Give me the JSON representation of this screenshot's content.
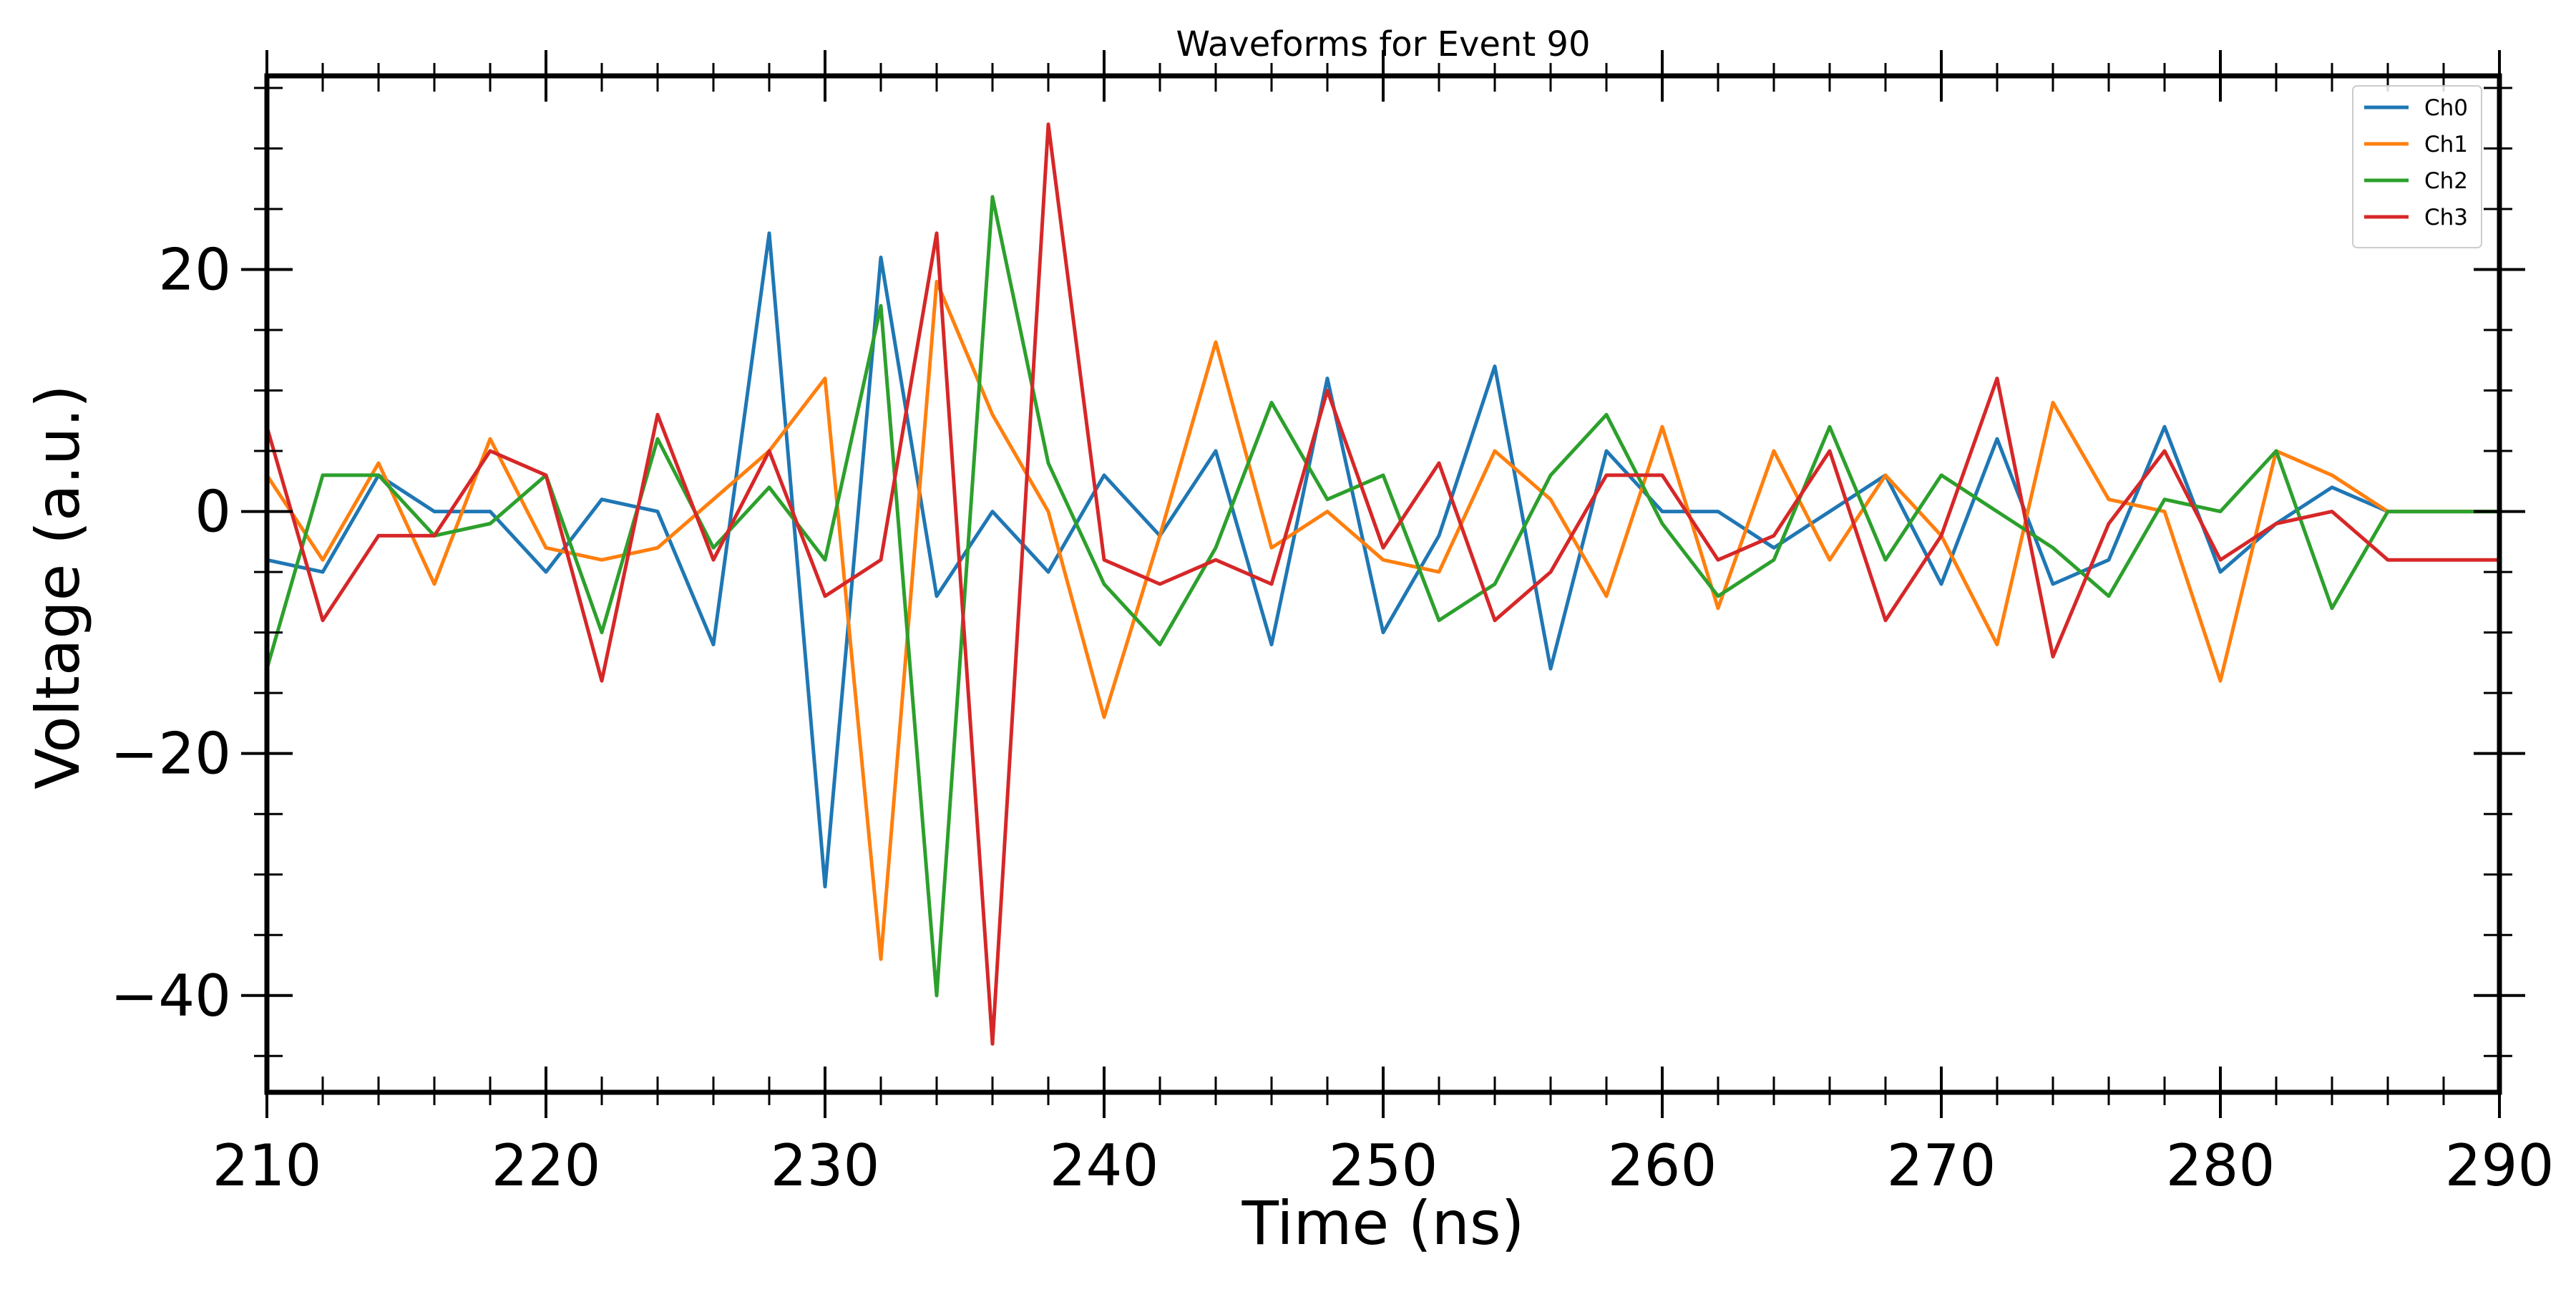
{
  "chart_data": {
    "type": "line",
    "title": "Waveforms for Event 90",
    "xlabel": "Time (ns)",
    "ylabel": "Voltage (a.u.)",
    "xlim": [
      210,
      290
    ],
    "ylim": [
      -48,
      36
    ],
    "x_ticks": [
      210,
      220,
      230,
      240,
      250,
      260,
      270,
      280,
      290
    ],
    "x_tick_labels": [
      "210",
      "220",
      "230",
      "240",
      "250",
      "260",
      "270",
      "280",
      "290"
    ],
    "y_ticks": [
      20,
      0,
      -20,
      -40
    ],
    "y_tick_labels": [
      "20",
      "0",
      "−20",
      "−40"
    ],
    "grid": false,
    "legend_position": "top-right",
    "x": [
      210,
      212,
      214,
      216,
      218,
      220,
      222,
      224,
      226,
      228,
      230,
      232,
      234,
      236,
      238,
      240,
      242,
      244,
      246,
      248,
      250,
      252,
      254,
      256,
      258,
      260,
      262,
      264,
      266,
      268,
      270,
      272,
      274,
      276,
      278,
      280,
      282,
      284,
      286,
      288,
      290
    ],
    "series": [
      {
        "name": "Ch0",
        "color": "#1f77b4",
        "values": [
          -4,
          -5,
          3,
          0,
          0,
          -5,
          1,
          0,
          -11,
          23,
          -31,
          21,
          -7,
          0,
          -5,
          3,
          -2,
          5,
          -11,
          11,
          -10,
          -2,
          12,
          -13,
          5,
          0,
          0,
          -3,
          0,
          3,
          -6,
          6,
          -6,
          -4,
          7,
          -5,
          -1,
          2,
          0,
          0,
          0
        ]
      },
      {
        "name": "Ch1",
        "color": "#ff7f0e",
        "values": [
          3,
          -4,
          4,
          -6,
          6,
          -3,
          -4,
          -3,
          1,
          5,
          11,
          -37,
          19,
          8,
          0,
          -17,
          -2,
          14,
          -3,
          0,
          -4,
          -5,
          5,
          1,
          -7,
          7,
          -8,
          5,
          -4,
          3,
          -2,
          -11,
          9,
          1,
          0,
          -14,
          5,
          3,
          0,
          0,
          0
        ]
      },
      {
        "name": "Ch2",
        "color": "#2ca02c",
        "values": [
          -13,
          3,
          3,
          -2,
          -1,
          3,
          -10,
          6,
          -3,
          2,
          -4,
          17,
          -40,
          26,
          4,
          -6,
          -11,
          -3,
          9,
          1,
          3,
          -9,
          -6,
          3,
          8,
          -1,
          -7,
          -4,
          7,
          -4,
          3,
          0,
          -3,
          -7,
          1,
          0,
          5,
          -8,
          0,
          0,
          0
        ]
      },
      {
        "name": "Ch3",
        "color": "#d62728",
        "values": [
          7,
          -9,
          -2,
          -2,
          5,
          3,
          -14,
          8,
          -4,
          5,
          -7,
          -4,
          23,
          -44,
          32,
          -4,
          -6,
          -4,
          -6,
          10,
          -3,
          4,
          -9,
          -5,
          3,
          3,
          -4,
          -2,
          5,
          -9,
          -2,
          11,
          -12,
          -1,
          5,
          -4,
          -1,
          0,
          -4,
          -4,
          -4
        ]
      }
    ]
  }
}
